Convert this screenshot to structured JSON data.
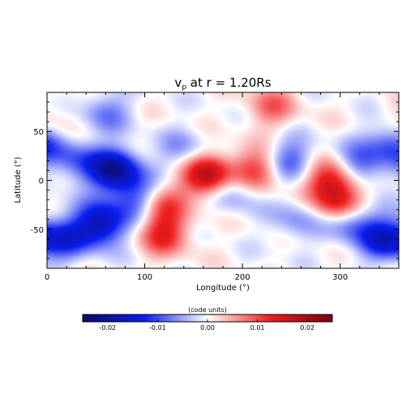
{
  "chart_data": {
    "type": "heatmap",
    "title": "v",
    "title_subscript": "p",
    "title_rest": " at r = 1.20Rs",
    "xlabel": "Longitude (°)",
    "ylabel": "Latitude (°)",
    "xlim": [
      0,
      360
    ],
    "ylim": [
      -90,
      90
    ],
    "xticks": [
      0,
      100,
      200,
      300
    ],
    "yticks": [
      -50,
      0,
      50
    ],
    "colorbar": {
      "label": "(code units)",
      "range": [
        -0.025,
        0.025
      ],
      "ticks": [
        "-0.02",
        "-0.01",
        "0.00",
        "0.01",
        "0.02"
      ],
      "tick_values": [
        -0.02,
        -0.01,
        0.0,
        0.01,
        0.02
      ],
      "colors": {
        "negative": "#0a0a64",
        "mid_negative": "#0a1ef0",
        "zero": "#ffffff",
        "mid_positive": "#f01e1e",
        "positive": "#7a0010"
      }
    },
    "features": [
      {
        "lon": 70,
        "lat": 10,
        "value": -0.02
      },
      {
        "lon": 55,
        "lat": -45,
        "value": -0.018
      },
      {
        "lon": 95,
        "lat": -20,
        "value": -0.012
      },
      {
        "lon": 20,
        "lat": -60,
        "value": -0.01
      },
      {
        "lon": 30,
        "lat": 20,
        "value": -0.008
      },
      {
        "lon": 120,
        "lat": -55,
        "value": 0.012
      },
      {
        "lon": 115,
        "lat": -25,
        "value": 0.012
      },
      {
        "lon": 165,
        "lat": 5,
        "value": 0.02
      },
      {
        "lon": 215,
        "lat": 10,
        "value": 0.012
      },
      {
        "lon": 230,
        "lat": 75,
        "value": 0.008
      },
      {
        "lon": 290,
        "lat": 0,
        "value": 0.015
      },
      {
        "lon": 300,
        "lat": -25,
        "value": 0.015
      },
      {
        "lon": 255,
        "lat": -40,
        "value": -0.006
      },
      {
        "lon": 310,
        "lat": -40,
        "value": -0.012
      },
      {
        "lon": 345,
        "lat": -60,
        "value": -0.014
      },
      {
        "lon": 355,
        "lat": 40,
        "value": -0.012
      },
      {
        "lon": 320,
        "lat": 15,
        "value": -0.01
      },
      {
        "lon": 60,
        "lat": 70,
        "value": -0.007
      },
      {
        "lon": 250,
        "lat": 20,
        "value": -0.01
      },
      {
        "lon": 190,
        "lat": -10,
        "value": -0.008
      },
      {
        "lon": 5,
        "lat": 55,
        "value": 0.006
      },
      {
        "lon": 140,
        "lat": 30,
        "value": -0.006
      }
    ]
  }
}
